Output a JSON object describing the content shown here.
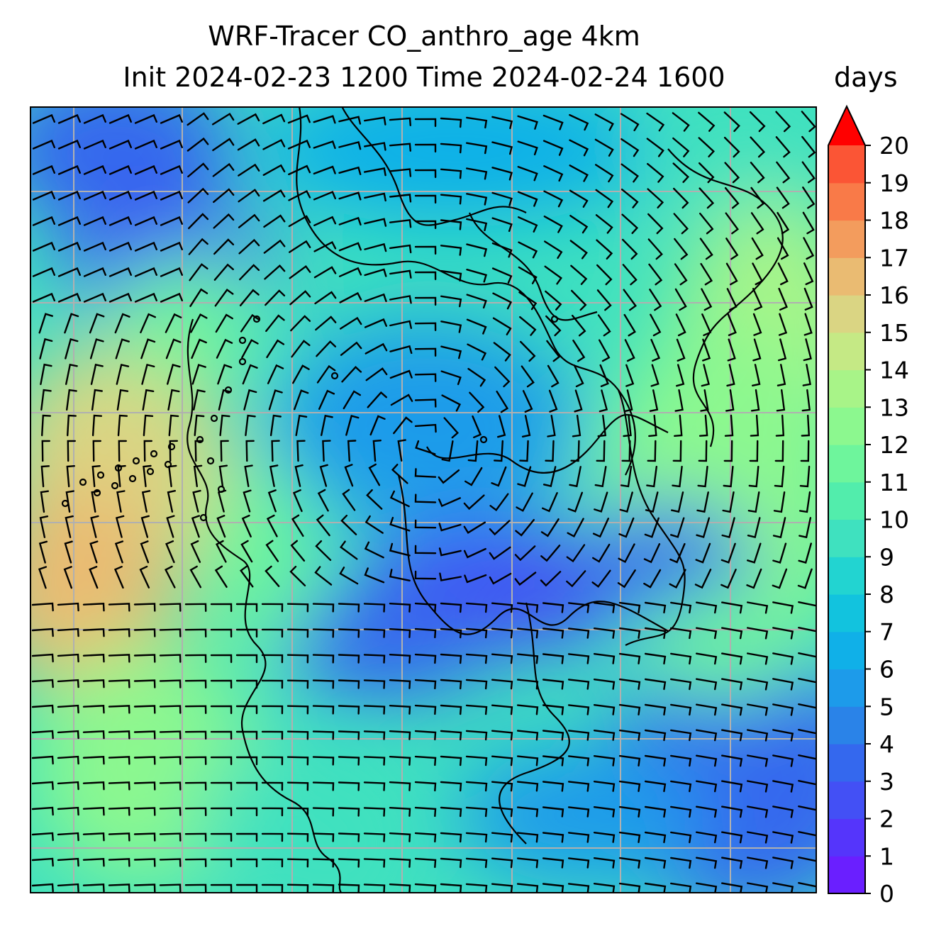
{
  "title": {
    "line1": "WRF-Tracer CO_anthro_age 4km",
    "line2": "Init 2024-02-23 1200 Time 2024-02-24 1600"
  },
  "colorbar": {
    "unit": "days",
    "min": 0,
    "max": 20,
    "ticks": [
      0,
      1,
      2,
      3,
      4,
      5,
      6,
      7,
      8,
      9,
      10,
      11,
      12,
      13,
      14,
      15,
      16,
      17,
      18,
      19,
      20
    ],
    "extend": "max",
    "colors": [
      "#6a1fff",
      "#5535fb",
      "#4350f5",
      "#3468ee",
      "#2a83e8",
      "#1d9bea",
      "#10b0e8",
      "#12c3de",
      "#22d4d1",
      "#3fe1bf",
      "#52edac",
      "#6ef59c",
      "#8cf88f",
      "#a8f488",
      "#c5e985",
      "#dad583",
      "#eabb72",
      "#f39c5d",
      "#f97a48",
      "#fb5535",
      "#ff2a20",
      "#ff0000"
    ]
  },
  "map": {
    "field": "CO_anthro_age",
    "gridlines": true,
    "wind_barbs": true,
    "coastlines": true
  }
}
